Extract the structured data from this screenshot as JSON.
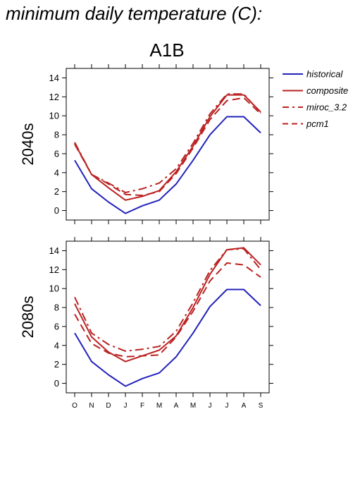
{
  "page_title": "minimum daily temperature (C):",
  "chart_data": [
    {
      "type": "line",
      "title": "A1B",
      "ylabel": "2040s",
      "xlabel": "",
      "categories": [
        "O",
        "N",
        "D",
        "J",
        "F",
        "M",
        "A",
        "M",
        "J",
        "J",
        "A",
        "S"
      ],
      "ylim": [
        -1,
        15
      ],
      "yticks": [
        0,
        2,
        4,
        6,
        8,
        10,
        12,
        14
      ],
      "grid": false,
      "legend": "right",
      "series": [
        {
          "name": "historical",
          "color": "#2222bb",
          "dash": "solid",
          "values": [
            5.3,
            2.3,
            0.9,
            -0.3,
            0.5,
            1.1,
            2.8,
            5.3,
            8.0,
            9.9,
            9.9,
            8.2
          ]
        },
        {
          "name": "composite",
          "color": "#bb2222",
          "dash": "solid",
          "values": [
            7.1,
            3.8,
            2.4,
            1.1,
            1.5,
            2.1,
            4.1,
            6.8,
            9.9,
            12.2,
            12.2,
            10.4
          ]
        },
        {
          "name": "miroc_3.2",
          "color": "#bb2222",
          "dash": "dashdot",
          "values": [
            7.2,
            3.8,
            2.9,
            1.9,
            2.3,
            2.9,
            4.4,
            7.1,
            10.2,
            12.3,
            12.3,
            10.3
          ]
        },
        {
          "name": "pcm1",
          "color": "#bb2222",
          "dash": "dashed",
          "values": [
            7.0,
            3.8,
            2.8,
            1.7,
            1.6,
            2.0,
            3.9,
            6.6,
            9.6,
            11.6,
            11.9,
            10.2
          ]
        }
      ]
    },
    {
      "type": "line",
      "title": "",
      "ylabel": "2080s",
      "xlabel": "",
      "categories": [
        "O",
        "N",
        "D",
        "J",
        "F",
        "M",
        "A",
        "M",
        "J",
        "J",
        "A",
        "S"
      ],
      "ylim": [
        -1,
        15
      ],
      "yticks": [
        0,
        2,
        4,
        6,
        8,
        10,
        12,
        14
      ],
      "grid": false,
      "series": [
        {
          "name": "historical",
          "color": "#2222bb",
          "dash": "solid",
          "values": [
            5.3,
            2.3,
            0.9,
            -0.3,
            0.5,
            1.1,
            2.8,
            5.3,
            8.1,
            9.9,
            9.9,
            8.2
          ]
        },
        {
          "name": "composite",
          "color": "#bb2222",
          "dash": "solid",
          "values": [
            8.4,
            4.9,
            3.3,
            2.3,
            2.9,
            3.5,
            5.0,
            8.0,
            11.5,
            14.1,
            14.3,
            12.5
          ]
        },
        {
          "name": "miroc_3.2",
          "color": "#bb2222",
          "dash": "dashdot",
          "values": [
            9.1,
            5.3,
            4.1,
            3.4,
            3.6,
            3.9,
            5.5,
            8.5,
            11.9,
            14.1,
            14.2,
            12.0
          ]
        },
        {
          "name": "pcm1",
          "color": "#bb2222",
          "dash": "dashed",
          "values": [
            7.3,
            4.2,
            3.2,
            2.8,
            2.9,
            3.0,
            4.9,
            7.6,
            10.8,
            12.7,
            12.5,
            11.2
          ]
        }
      ]
    }
  ]
}
